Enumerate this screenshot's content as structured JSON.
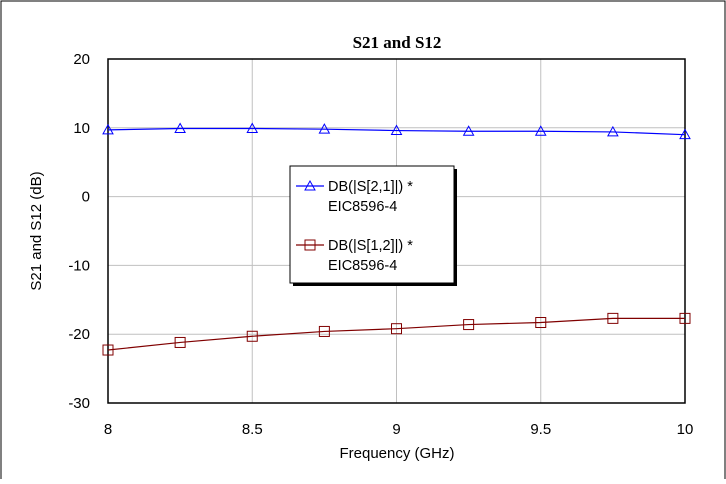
{
  "chart_data": {
    "type": "line",
    "title": "S21 and S12",
    "xlabel": "Frequency (GHz)",
    "ylabel": "S21 and S12 (dB)",
    "xlim": [
      8,
      10
    ],
    "ylim": [
      -30,
      20
    ],
    "xticks": [
      "8",
      "8.5",
      "9",
      "9.5",
      "10"
    ],
    "yticks": [
      "20",
      "10",
      "0",
      "-10",
      "-20",
      "-30"
    ],
    "grid": true,
    "legend_position": "center",
    "x": [
      8,
      8.25,
      8.5,
      8.75,
      9,
      9.25,
      9.5,
      9.75,
      10
    ],
    "series": [
      {
        "name": "DB(|S[2,1]|) *",
        "source": "EIC8596-4",
        "color": "#0000ff",
        "marker": "triangle",
        "values": [
          9.7,
          9.9,
          9.9,
          9.8,
          9.6,
          9.5,
          9.5,
          9.4,
          9.0
        ]
      },
      {
        "name": "DB(|S[1,2]|) *",
        "source": "EIC8596-4",
        "color": "#800000",
        "marker": "square",
        "values": [
          -22.3,
          -21.2,
          -20.3,
          -19.6,
          -19.2,
          -18.6,
          -18.3,
          -17.7,
          -17.7
        ]
      }
    ]
  }
}
